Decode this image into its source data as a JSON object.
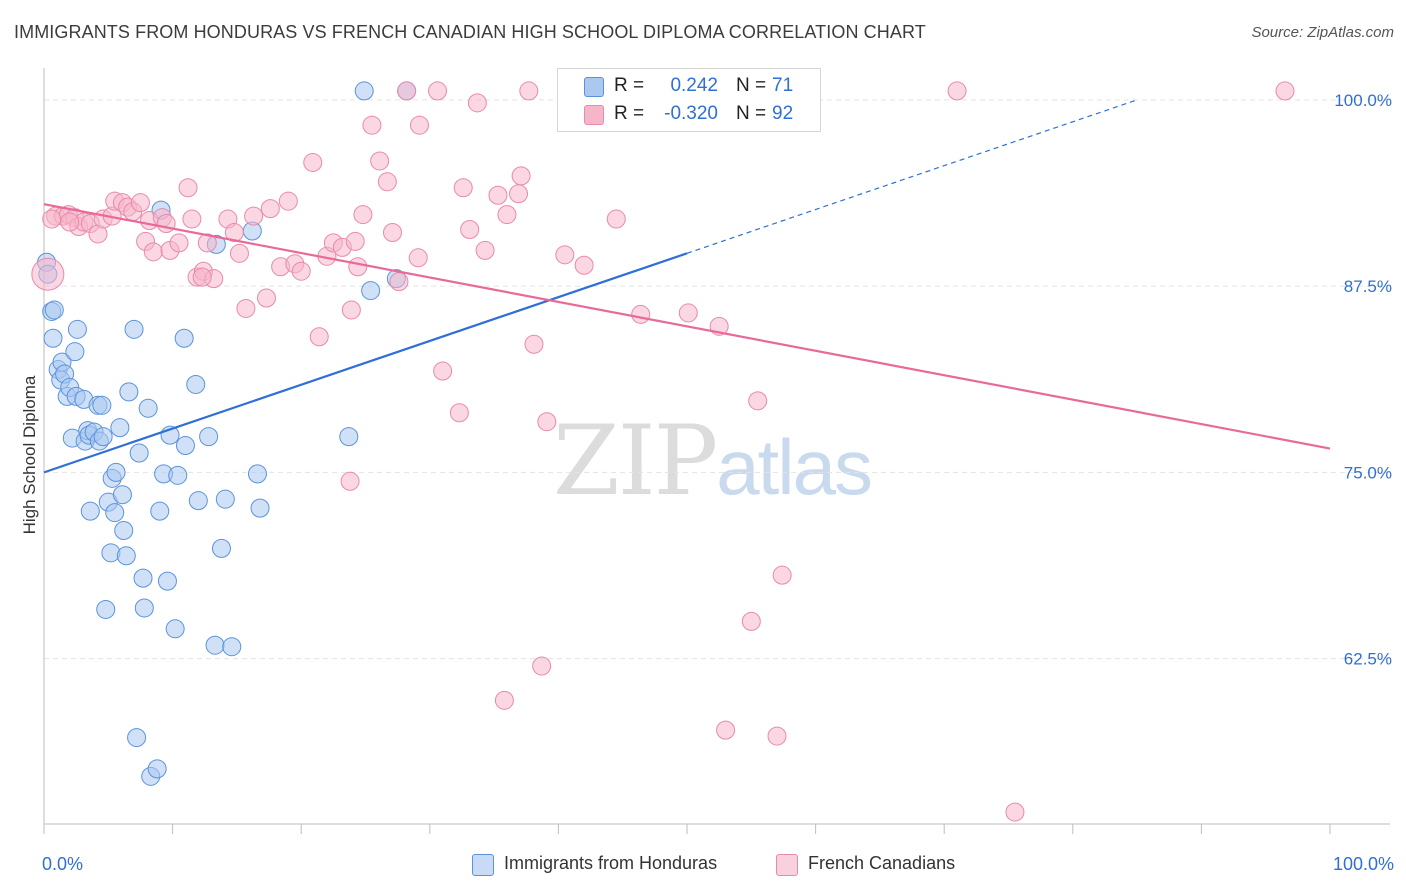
{
  "header": {
    "title": "IMMIGRANTS FROM HONDURAS VS FRENCH CANADIAN HIGH SCHOOL DIPLOMA CORRELATION CHART",
    "source": "Source: ZipAtlas.com"
  },
  "watermark": {
    "zip": "ZIP",
    "atlas": "atlas"
  },
  "legend_top": {
    "rows": [
      {
        "r_label": "R =",
        "r_value": "0.242",
        "n_label": "N =",
        "n_value": "71",
        "color": "#aac8f0"
      },
      {
        "r_label": "R =",
        "r_value": "-0.320",
        "n_label": "N =",
        "n_value": "92",
        "color": "#f5b6ca"
      }
    ]
  },
  "legend_bottom": {
    "items": [
      {
        "label": "Immigrants from Honduras",
        "color": "#aac8f0"
      },
      {
        "label": "French Canadians",
        "color": "#f5b6ca"
      }
    ]
  },
  "colors": {
    "blue_fill": "#aac8f0",
    "blue_stroke": "#5b93db",
    "blue_line": "#2f6fd6",
    "pink_fill": "#f5b6ca",
    "pink_stroke": "#e98aaa",
    "pink_line": "#e8699a",
    "axis_label": "#2f6fd6",
    "grid": "#e3e3e3"
  },
  "chart_data": {
    "type": "scatter",
    "title": "IMMIGRANTS FROM HONDURAS VS FRENCH CANADIAN HIGH SCHOOL DIPLOMA CORRELATION CHART",
    "xlabel": "",
    "ylabel": "High School Diploma",
    "xlim": [
      0,
      100
    ],
    "ylim": [
      51.4,
      101.4
    ],
    "x_tick_labels": [
      "0.0%",
      "100.0%"
    ],
    "y_ticks": [
      62.5,
      75.0,
      87.5,
      100.0
    ],
    "y_tick_labels": [
      "62.5%",
      "75.0%",
      "87.5%",
      "100.0%"
    ],
    "grid": true,
    "legend_position": "top-center",
    "series": [
      {
        "name": "Immigrants from Honduras",
        "R": 0.242,
        "N": 71,
        "trend": {
          "x0": 0,
          "y0": 75.0,
          "x1": 50,
          "y1": 89.7,
          "dashed_to_x": 85,
          "dashed_to_y": 100.0
        },
        "points": [
          [
            0.2,
            89.1
          ],
          [
            0.6,
            85.8
          ],
          [
            0.7,
            84.0
          ],
          [
            0.8,
            85.9
          ],
          [
            1.1,
            81.9
          ],
          [
            1.3,
            81.2
          ],
          [
            1.4,
            82.4
          ],
          [
            1.6,
            81.6
          ],
          [
            1.8,
            80.1
          ],
          [
            2.0,
            80.7
          ],
          [
            2.2,
            77.3
          ],
          [
            2.4,
            83.1
          ],
          [
            2.5,
            80.1
          ],
          [
            2.6,
            84.6
          ],
          [
            3.1,
            79.9
          ],
          [
            3.2,
            77.1
          ],
          [
            3.4,
            77.8
          ],
          [
            3.5,
            77.5
          ],
          [
            3.6,
            72.4
          ],
          [
            3.9,
            77.7
          ],
          [
            4.2,
            79.5
          ],
          [
            4.3,
            77.1
          ],
          [
            4.5,
            79.5
          ],
          [
            4.6,
            77.4
          ],
          [
            4.8,
            65.8
          ],
          [
            5.0,
            73.0
          ],
          [
            5.2,
            69.6
          ],
          [
            5.3,
            74.6
          ],
          [
            5.5,
            72.3
          ],
          [
            5.6,
            75.0
          ],
          [
            5.9,
            78.0
          ],
          [
            6.1,
            73.5
          ],
          [
            6.2,
            71.1
          ],
          [
            6.4,
            69.4
          ],
          [
            6.6,
            80.4
          ],
          [
            7.0,
            84.6
          ],
          [
            7.2,
            57.2
          ],
          [
            7.4,
            76.3
          ],
          [
            7.7,
            67.9
          ],
          [
            7.8,
            65.9
          ],
          [
            8.1,
            79.3
          ],
          [
            8.3,
            54.6
          ],
          [
            8.8,
            55.1
          ],
          [
            9.0,
            72.4
          ],
          [
            9.1,
            92.6
          ],
          [
            9.3,
            74.9
          ],
          [
            9.6,
            67.7
          ],
          [
            9.8,
            77.5
          ],
          [
            10.2,
            64.5
          ],
          [
            10.4,
            74.8
          ],
          [
            10.9,
            84.0
          ],
          [
            11.0,
            76.8
          ],
          [
            11.8,
            80.9
          ],
          [
            12.0,
            73.1
          ],
          [
            12.8,
            77.4
          ],
          [
            13.3,
            63.4
          ],
          [
            13.4,
            90.3
          ],
          [
            13.8,
            69.9
          ],
          [
            14.1,
            73.2
          ],
          [
            14.6,
            63.3
          ],
          [
            16.2,
            91.2
          ],
          [
            16.6,
            74.9
          ],
          [
            16.8,
            72.6
          ],
          [
            23.7,
            77.4
          ],
          [
            24.9,
            100.6
          ],
          [
            25.4,
            87.2
          ],
          [
            27.4,
            88.0
          ],
          [
            28.2,
            100.6
          ],
          [
            40.8,
            100.6
          ],
          [
            49.7,
            100.6
          ],
          [
            0.3,
            88.3
          ]
        ]
      },
      {
        "name": "French Canadians",
        "R": -0.32,
        "N": 92,
        "trend": {
          "x0": 0,
          "y0": 93.0,
          "x1": 100,
          "y1": 76.6
        },
        "points": [
          [
            0.3,
            88.3
          ],
          [
            0.9,
            92.2
          ],
          [
            1.5,
            92.2
          ],
          [
            1.9,
            92.3
          ],
          [
            2.4,
            92.1
          ],
          [
            2.7,
            91.5
          ],
          [
            3.1,
            91.8
          ],
          [
            3.6,
            91.7
          ],
          [
            4.2,
            91.0
          ],
          [
            4.6,
            92.0
          ],
          [
            5.3,
            92.2
          ],
          [
            5.5,
            93.2
          ],
          [
            6.1,
            93.1
          ],
          [
            6.5,
            92.8
          ],
          [
            6.9,
            92.5
          ],
          [
            7.5,
            93.1
          ],
          [
            7.9,
            90.5
          ],
          [
            8.2,
            91.9
          ],
          [
            8.5,
            89.8
          ],
          [
            9.2,
            92.1
          ],
          [
            9.5,
            91.7
          ],
          [
            9.8,
            89.9
          ],
          [
            10.5,
            90.4
          ],
          [
            11.2,
            94.1
          ],
          [
            11.5,
            92.0
          ],
          [
            11.9,
            88.1
          ],
          [
            12.4,
            88.5
          ],
          [
            12.7,
            90.4
          ],
          [
            13.2,
            88.0
          ],
          [
            14.3,
            92.0
          ],
          [
            14.8,
            91.1
          ],
          [
            15.2,
            89.7
          ],
          [
            15.7,
            86.0
          ],
          [
            16.3,
            92.2
          ],
          [
            17.3,
            86.7
          ],
          [
            17.6,
            92.7
          ],
          [
            18.4,
            88.8
          ],
          [
            19.0,
            93.2
          ],
          [
            19.5,
            89.0
          ],
          [
            20.0,
            88.5
          ],
          [
            20.9,
            95.8
          ],
          [
            21.4,
            84.1
          ],
          [
            22.0,
            89.5
          ],
          [
            22.5,
            90.4
          ],
          [
            23.2,
            90.1
          ],
          [
            23.8,
            74.4
          ],
          [
            23.9,
            85.9
          ],
          [
            24.4,
            88.8
          ],
          [
            24.8,
            92.3
          ],
          [
            25.5,
            98.3
          ],
          [
            26.1,
            95.9
          ],
          [
            26.7,
            94.5
          ],
          [
            27.1,
            91.1
          ],
          [
            27.6,
            87.8
          ],
          [
            28.2,
            100.6
          ],
          [
            29.1,
            89.4
          ],
          [
            29.2,
            98.3
          ],
          [
            30.6,
            100.6
          ],
          [
            31.0,
            81.8
          ],
          [
            32.3,
            79.0
          ],
          [
            32.6,
            94.1
          ],
          [
            33.1,
            91.3
          ],
          [
            33.7,
            99.8
          ],
          [
            34.3,
            89.9
          ],
          [
            35.3,
            93.6
          ],
          [
            35.8,
            59.7
          ],
          [
            36.0,
            92.3
          ],
          [
            36.9,
            93.7
          ],
          [
            37.1,
            94.9
          ],
          [
            37.7,
            100.6
          ],
          [
            38.1,
            83.6
          ],
          [
            38.7,
            62.0
          ],
          [
            39.1,
            78.4
          ],
          [
            40.5,
            89.6
          ],
          [
            42.0,
            88.9
          ],
          [
            44.5,
            92.0
          ],
          [
            46.4,
            85.6
          ],
          [
            47.7,
            100.6
          ],
          [
            50.1,
            85.7
          ],
          [
            52.5,
            84.8
          ],
          [
            53.0,
            57.7
          ],
          [
            55.0,
            65.0
          ],
          [
            55.5,
            79.8
          ],
          [
            57.0,
            57.3
          ],
          [
            57.4,
            68.1
          ],
          [
            71.0,
            100.6
          ],
          [
            75.5,
            52.2
          ],
          [
            96.5,
            100.6
          ],
          [
            0.6,
            92.0
          ],
          [
            2.0,
            91.8
          ],
          [
            12.3,
            88.1
          ],
          [
            24.2,
            90.5
          ]
        ]
      }
    ]
  }
}
